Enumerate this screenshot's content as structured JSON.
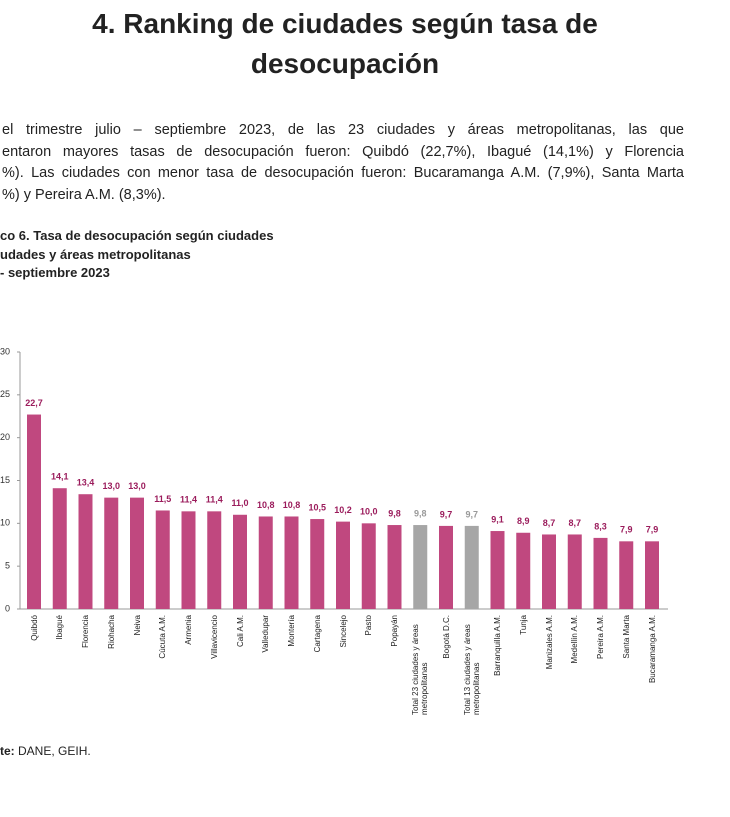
{
  "header": {
    "title_lines": [
      "4. Ranking de ciudades según tasa de",
      "desocupación"
    ]
  },
  "paragraph_lines": [
    "el trimestre julio – septiembre 2023, de las 23 ciudades y áreas metropolitanas, las que",
    "entaron mayores tasas de desocupación fueron: Quibdó (22,7%), Ibagué (14,1%) y Florencia",
    "%). Las ciudades con menor tasa de desocupación fueron: Bucaramanga A.M. (7,9%), Santa Marta",
    "%) y Pereira A.M. (8,3%)."
  ],
  "chart_data": {
    "type": "bar",
    "title_lines": [
      "co 6. Tasa de desocupación según ciudades",
      "udades y áreas metropolitanas",
      "- septiembre 2023"
    ],
    "categories": [
      "Quibdó",
      "Ibagué",
      "Florencia",
      "Riohacha",
      "Neiva",
      "Cúcuta A.M.",
      "Armenia",
      "Villavicencio",
      "Cali A.M.",
      "Valledupar",
      "Montería",
      "Cartagena",
      "Sincelejo",
      "Pasto",
      "Popayán",
      "Total 23 ciudades y áreas metropolitanas",
      "Bogotá D.C.",
      "Total 13 ciudades y áreas metropolitanas",
      "Barranquilla A.M.",
      "Tunja",
      "Manizales A.M.",
      "Medellín A.M.",
      "Pereira A.M.",
      "Santa Marta",
      "Bucaramanga A.M."
    ],
    "values": [
      22.7,
      14.1,
      13.4,
      13.0,
      13.0,
      11.5,
      11.4,
      11.4,
      11.0,
      10.8,
      10.8,
      10.5,
      10.2,
      10.0,
      9.8,
      9.8,
      9.7,
      9.7,
      9.1,
      8.9,
      8.7,
      8.7,
      8.3,
      7.9,
      7.9
    ],
    "value_labels": [
      "22,7",
      "14,1",
      "13,4",
      "13,0",
      "13,0",
      "11,5",
      "11,4",
      "11,4",
      "11,0",
      "10,8",
      "10,8",
      "10,5",
      "10,2",
      "10,0",
      "9,8",
      "9,8",
      "9,7",
      "9,7",
      "9,1",
      "8,9",
      "8,7",
      "8,7",
      "8,3",
      "7,9",
      "7,9"
    ],
    "colors": [
      "#c0487f",
      "#c0487f",
      "#c0487f",
      "#c0487f",
      "#c0487f",
      "#c0487f",
      "#c0487f",
      "#c0487f",
      "#c0487f",
      "#c0487f",
      "#c0487f",
      "#c0487f",
      "#c0487f",
      "#c0487f",
      "#c0487f",
      "#a6a6a6",
      "#c0487f",
      "#a6a6a6",
      "#c0487f",
      "#c0487f",
      "#c0487f",
      "#c0487f",
      "#c0487f",
      "#c0487f",
      "#c0487f"
    ],
    "ylim": [
      0,
      30
    ],
    "yticks": [
      0,
      5,
      10,
      15,
      20,
      25,
      30
    ]
  },
  "source": {
    "label": "te:",
    "text": "DANE, GEIH."
  }
}
